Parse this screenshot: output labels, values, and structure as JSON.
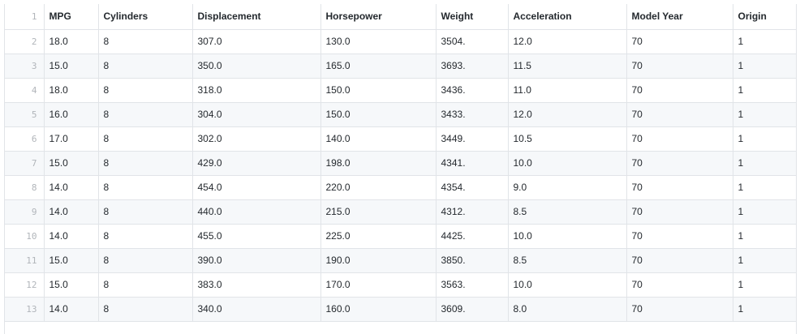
{
  "table": {
    "headers": [
      "MPG",
      "Cylinders",
      "Displacement",
      "Horsepower",
      "Weight",
      "Acceleration",
      "Model Year",
      "Origin"
    ],
    "rows": [
      {
        "line": "2",
        "cells": [
          "18.0",
          "8",
          "307.0",
          "130.0",
          "3504.",
          "12.0",
          "70",
          "1"
        ]
      },
      {
        "line": "3",
        "cells": [
          "15.0",
          "8",
          "350.0",
          "165.0",
          "3693.",
          "11.5",
          "70",
          "1"
        ]
      },
      {
        "line": "4",
        "cells": [
          "18.0",
          "8",
          "318.0",
          "150.0",
          "3436.",
          "11.0",
          "70",
          "1"
        ]
      },
      {
        "line": "5",
        "cells": [
          "16.0",
          "8",
          "304.0",
          "150.0",
          "3433.",
          "12.0",
          "70",
          "1"
        ]
      },
      {
        "line": "6",
        "cells": [
          "17.0",
          "8",
          "302.0",
          "140.0",
          "3449.",
          "10.5",
          "70",
          "1"
        ]
      },
      {
        "line": "7",
        "cells": [
          "15.0",
          "8",
          "429.0",
          "198.0",
          "4341.",
          "10.0",
          "70",
          "1"
        ]
      },
      {
        "line": "8",
        "cells": [
          "14.0",
          "8",
          "454.0",
          "220.0",
          "4354.",
          "9.0",
          "70",
          "1"
        ]
      },
      {
        "line": "9",
        "cells": [
          "14.0",
          "8",
          "440.0",
          "215.0",
          "4312.",
          "8.5",
          "70",
          "1"
        ]
      },
      {
        "line": "10",
        "cells": [
          "14.0",
          "8",
          "455.0",
          "225.0",
          "4425.",
          "10.0",
          "70",
          "1"
        ]
      },
      {
        "line": "11",
        "cells": [
          "15.0",
          "8",
          "390.0",
          "190.0",
          "3850.",
          "8.5",
          "70",
          "1"
        ]
      },
      {
        "line": "12",
        "cells": [
          "15.0",
          "8",
          "383.0",
          "170.0",
          "3563.",
          "10.0",
          "70",
          "1"
        ]
      },
      {
        "line": "13",
        "cells": [
          "14.0",
          "8",
          "340.0",
          "160.0",
          "3609.",
          "8.0",
          "70",
          "1"
        ]
      }
    ],
    "header_line": "1"
  },
  "colors": {
    "border": "#e1e4e8",
    "stripe": "#f6f8fa",
    "line_number": "#b1b5ba",
    "text": "#24292e"
  }
}
